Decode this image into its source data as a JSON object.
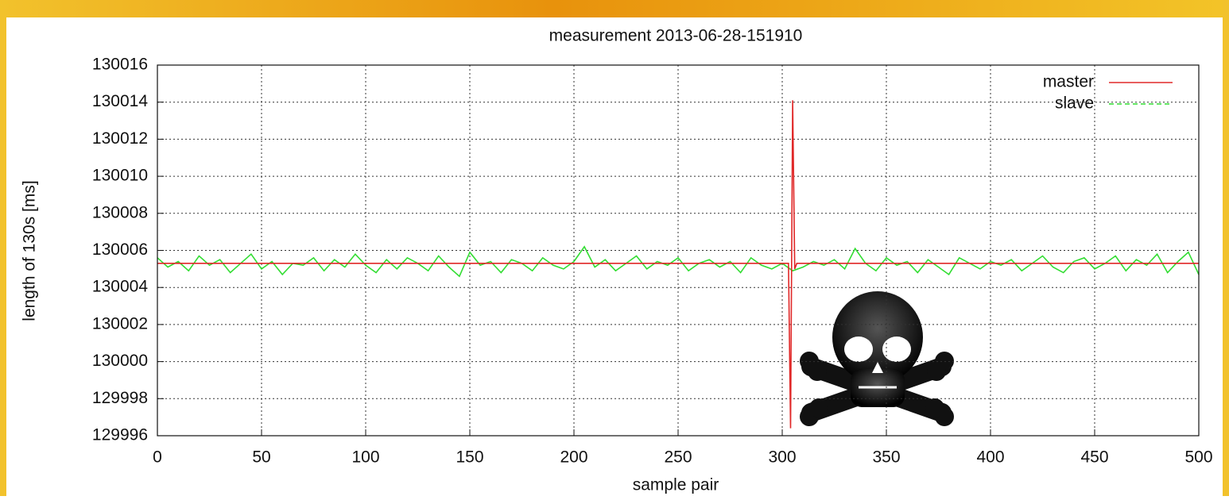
{
  "chart_data": {
    "type": "line",
    "title": "measurement 2013-06-28-151910",
    "x_label": "sample pair",
    "y_label": "length of 130s [ms]",
    "xlim": [
      0,
      500
    ],
    "xticks": [
      0,
      50,
      100,
      150,
      200,
      250,
      300,
      350,
      400,
      450,
      500
    ],
    "ylim": [
      129996,
      130016
    ],
    "yticks": [
      129996,
      129998,
      130000,
      130002,
      130004,
      130006,
      130008,
      130010,
      130012,
      130014,
      130016
    ],
    "grid": true,
    "legend": "top-right",
    "series": [
      {
        "name": "master",
        "color": "#e02828",
        "dashed": false,
        "x": [
          0,
          303,
          304,
          305,
          306,
          307,
          500
        ],
        "values": [
          130005.3,
          130005.3,
          129996.4,
          130014.1,
          130005.0,
          130005.3,
          130005.3
        ]
      },
      {
        "name": "slave",
        "color": "#33dd33",
        "dashed": true,
        "x": [
          0,
          5,
          10,
          15,
          20,
          25,
          30,
          35,
          40,
          45,
          50,
          55,
          60,
          65,
          70,
          75,
          80,
          85,
          90,
          95,
          100,
          105,
          110,
          115,
          120,
          125,
          130,
          135,
          140,
          145,
          150,
          155,
          160,
          165,
          170,
          175,
          180,
          185,
          190,
          195,
          200,
          205,
          210,
          215,
          220,
          225,
          230,
          235,
          240,
          245,
          250,
          255,
          260,
          265,
          270,
          275,
          280,
          285,
          290,
          295,
          300,
          305,
          310,
          315,
          320,
          325,
          330,
          335,
          340,
          345,
          350,
          355,
          360,
          365,
          370,
          375,
          380,
          385,
          390,
          395,
          400,
          405,
          410,
          415,
          420,
          425,
          430,
          435,
          440,
          445,
          450,
          455,
          460,
          465,
          470,
          475,
          480,
          485,
          490,
          495,
          500
        ],
        "values": [
          130005.6,
          130005.1,
          130005.4,
          130004.9,
          130005.7,
          130005.2,
          130005.5,
          130004.8,
          130005.3,
          130005.8,
          130005.0,
          130005.4,
          130004.7,
          130005.3,
          130005.2,
          130005.6,
          130004.9,
          130005.5,
          130005.1,
          130005.8,
          130005.2,
          130004.8,
          130005.5,
          130005.0,
          130005.6,
          130005.3,
          130004.9,
          130005.7,
          130005.1,
          130004.6,
          130005.9,
          130005.2,
          130005.4,
          130004.8,
          130005.5,
          130005.3,
          130004.9,
          130005.6,
          130005.2,
          130005.0,
          130005.4,
          130006.2,
          130005.1,
          130005.5,
          130004.9,
          130005.3,
          130005.7,
          130005.0,
          130005.4,
          130005.2,
          130005.6,
          130004.9,
          130005.3,
          130005.5,
          130005.1,
          130005.4,
          130004.8,
          130005.6,
          130005.2,
          130005.0,
          130005.3,
          130004.9,
          130005.1,
          130005.4,
          130005.2,
          130005.5,
          130005.0,
          130006.1,
          130005.3,
          130004.9,
          130005.6,
          130005.2,
          130005.4,
          130004.8,
          130005.5,
          130005.1,
          130004.7,
          130005.6,
          130005.3,
          130005.0,
          130005.4,
          130005.2,
          130005.5,
          130004.9,
          130005.3,
          130005.7,
          130005.1,
          130004.8,
          130005.4,
          130005.6,
          130005.0,
          130005.3,
          130005.7,
          130004.9,
          130005.5,
          130005.2,
          130005.8,
          130004.8,
          130005.4,
          130005.9,
          130004.7
        ]
      }
    ]
  }
}
